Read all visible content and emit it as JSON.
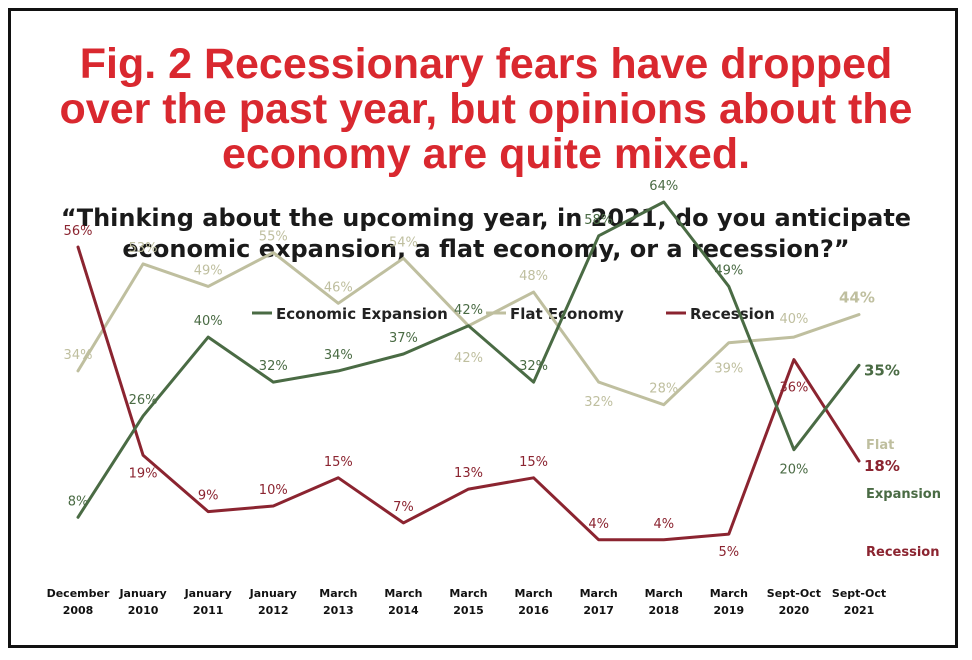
{
  "title": {
    "line1": "Fig. 2 Recessionary fears have dropped",
    "line2": "over the past year, but opinions about the",
    "line3": "economy are quite mixed."
  },
  "subtitle": {
    "line1": "“Thinking about the upcoming year, in 2021, do you anticipate",
    "line2": "economic expansion, a flat economy, or a recession?”"
  },
  "chart_data": {
    "type": "line",
    "categories": [
      [
        "December",
        "2008"
      ],
      [
        "January",
        "2010"
      ],
      [
        "January",
        "2011"
      ],
      [
        "January",
        "2012"
      ],
      [
        "March",
        "2013"
      ],
      [
        "March",
        "2014"
      ],
      [
        "March",
        "2015"
      ],
      [
        "March",
        "2016"
      ],
      [
        "March",
        "2017"
      ],
      [
        "March",
        "2018"
      ],
      [
        "March",
        "2019"
      ],
      [
        "Sept-Oct",
        "2020"
      ],
      [
        "Sept-Oct",
        "2021"
      ]
    ],
    "legend_position": "top-center",
    "grid": false,
    "ylim": [
      0,
      70
    ],
    "series": [
      {
        "name": "Economic Expansion",
        "color": "#4a6b44",
        "values": [
          8,
          26,
          40,
          32,
          34,
          37,
          42,
          32,
          58,
          64,
          49,
          20,
          35
        ],
        "labels": [
          "8%",
          "26%",
          "40%",
          "32%",
          "34%",
          "37%",
          "42%",
          "32%",
          "58%",
          "64%",
          "49%",
          "20%",
          "35%"
        ],
        "end_label": "Expansion"
      },
      {
        "name": "Flat Economy",
        "color": "#bfbf9f",
        "values": [
          34,
          53,
          49,
          55,
          46,
          54,
          42,
          48,
          32,
          28,
          39,
          40,
          44
        ],
        "labels": [
          "34%",
          "53%",
          "49%",
          "55%",
          "46%",
          "54%",
          "42%",
          "48%",
          "32%",
          "28%",
          "39%",
          "40%",
          "44%"
        ],
        "end_label": "Flat"
      },
      {
        "name": "Recession",
        "color": "#8b2430",
        "values": [
          56,
          19,
          9,
          10,
          15,
          7,
          13,
          15,
          4,
          4,
          5,
          36,
          18
        ],
        "labels": [
          "56%",
          "19%",
          "9%",
          "10%",
          "15%",
          "7%",
          "13%",
          "15%",
          "4%",
          "4%",
          "5%",
          "36%",
          "18%"
        ],
        "end_label": "Recession"
      }
    ]
  }
}
